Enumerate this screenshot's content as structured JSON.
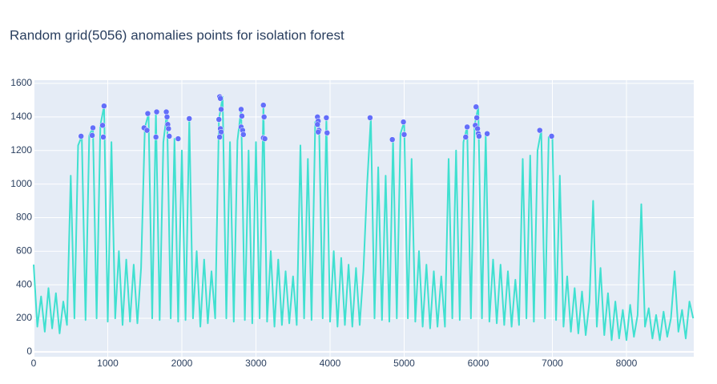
{
  "chart_data": {
    "type": "line",
    "title": "Random grid(5056) anomalies points for isolation forest",
    "xlim": [
      0,
      8908
    ],
    "ylim": [
      -29,
      1619
    ],
    "xticks": [
      0,
      1000,
      2000,
      3000,
      4000,
      5000,
      6000,
      7000,
      8000
    ],
    "yticks": [
      0,
      200,
      400,
      600,
      800,
      1000,
      1200,
      1400,
      1600
    ],
    "grid": true,
    "series": [
      {
        "mode": "lines",
        "color": "#40e0d0",
        "x": [
          0,
          50,
          100,
          150,
          200,
          250,
          300,
          350,
          400,
          450,
          500,
          550,
          600,
          650,
          700,
          750,
          800,
          850,
          900,
          950,
          1000,
          1050,
          1100,
          1150,
          1200,
          1250,
          1300,
          1350,
          1400,
          1450,
          1500,
          1550,
          1600,
          1650,
          1700,
          1750,
          1800,
          1850,
          1900,
          1950,
          2000,
          2050,
          2100,
          2150,
          2200,
          2250,
          2300,
          2350,
          2400,
          2450,
          2500,
          2550,
          2600,
          2650,
          2700,
          2750,
          2800,
          2850,
          2900,
          2950,
          3000,
          3050,
          3100,
          3150,
          3200,
          3250,
          3300,
          3350,
          3400,
          3450,
          3500,
          3550,
          3600,
          3650,
          3700,
          3750,
          3800,
          3850,
          3900,
          3950,
          4000,
          4050,
          4100,
          4150,
          4200,
          4250,
          4300,
          4350,
          4400,
          4450,
          4500,
          4550,
          4600,
          4650,
          4700,
          4750,
          4800,
          4850,
          4900,
          4950,
          5000,
          5050,
          5100,
          5150,
          5200,
          5250,
          5300,
          5350,
          5400,
          5450,
          5500,
          5550,
          5600,
          5650,
          5700,
          5750,
          5800,
          5850,
          5900,
          5950,
          6000,
          6050,
          6100,
          6150,
          6200,
          6250,
          6300,
          6350,
          6400,
          6450,
          6500,
          6550,
          6600,
          6650,
          6700,
          6750,
          6800,
          6850,
          6900,
          6950,
          7000,
          7050,
          7100,
          7150,
          7200,
          7250,
          7300,
          7350,
          7400,
          7450,
          7500,
          7550,
          7600,
          7650,
          7700,
          7750,
          7800,
          7850,
          7900,
          7950,
          8000,
          8050,
          8100,
          8150,
          8200,
          8250,
          8300,
          8350,
          8400,
          8450,
          8500,
          8550,
          8600,
          8650,
          8700,
          8750,
          8800,
          8850,
          8900
        ],
        "values": [
          520,
          150,
          330,
          120,
          380,
          140,
          350,
          110,
          300,
          160,
          1050,
          200,
          1230,
          1285,
          190,
          1290,
          1335,
          200,
          1350,
          1465,
          180,
          1250,
          200,
          600,
          160,
          550,
          180,
          520,
          170,
          500,
          1335,
          1420,
          200,
          1430,
          190,
          1250,
          1430,
          200,
          1270,
          180,
          1200,
          190,
          1390,
          200,
          600,
          150,
          550,
          170,
          480,
          200,
          1385,
          1520,
          200,
          1250,
          180,
          1260,
          1445,
          190,
          1200,
          170,
          1250,
          200,
          1470,
          180,
          600,
          150,
          550,
          160,
          480,
          170,
          450,
          160,
          1230,
          200,
          1150,
          190,
          1370,
          1400,
          200,
          1395,
          180,
          600,
          150,
          560,
          160,
          520,
          150,
          500,
          160,
          480,
          1000,
          1395,
          200,
          1100,
          190,
          1050,
          180,
          1265,
          200,
          1300,
          1370,
          200,
          1150,
          180,
          600,
          150,
          520,
          140,
          480,
          150,
          450,
          150,
          1150,
          200,
          1200,
          190,
          1250,
          1340,
          200,
          1350,
          1460,
          200,
          1300,
          180,
          550,
          170,
          520,
          160,
          480,
          150,
          430,
          160,
          1150,
          200,
          1170,
          180,
          1200,
          1320,
          200,
          1280,
          1285,
          190,
          1050,
          150,
          450,
          120,
          380,
          110,
          360,
          100,
          300,
          900,
          150,
          500,
          100,
          350,
          70,
          300,
          80,
          250,
          70,
          280,
          90,
          220,
          880,
          150,
          260,
          80,
          220,
          70,
          240,
          90,
          200,
          480,
          120,
          250,
          80,
          300,
          200
        ]
      },
      {
        "mode": "markers",
        "color": "#636efa",
        "x": [
          640,
          790,
          800,
          930,
          940,
          950,
          1490,
          1530,
          1540,
          1650,
          1660,
          1790,
          1800,
          1810,
          1820,
          1830,
          1950,
          2100,
          2500,
          2510,
          2520,
          2530,
          2520,
          2530,
          2510,
          2800,
          2810,
          2800,
          2820,
          2830,
          3100,
          3110,
          3100,
          3120,
          3830,
          3840,
          3830,
          3850,
          3840,
          3950,
          3960,
          4540,
          4840,
          4990,
          5000,
          5830,
          5850,
          5960,
          5970,
          5980,
          5990,
          6000,
          6010,
          6120,
          6830,
          6990
        ],
        "values": [
          1285,
          1290,
          1335,
          1350,
          1280,
          1465,
          1335,
          1320,
          1420,
          1280,
          1430,
          1430,
          1400,
          1355,
          1330,
          1285,
          1270,
          1390,
          1385,
          1520,
          1510,
          1445,
          1330,
          1310,
          1280,
          1445,
          1405,
          1340,
          1320,
          1295,
          1470,
          1400,
          1275,
          1270,
          1400,
          1375,
          1355,
          1320,
          1310,
          1395,
          1305,
          1395,
          1265,
          1370,
          1295,
          1280,
          1340,
          1350,
          1460,
          1395,
          1330,
          1300,
          1285,
          1300,
          1320,
          1285
        ]
      }
    ]
  }
}
